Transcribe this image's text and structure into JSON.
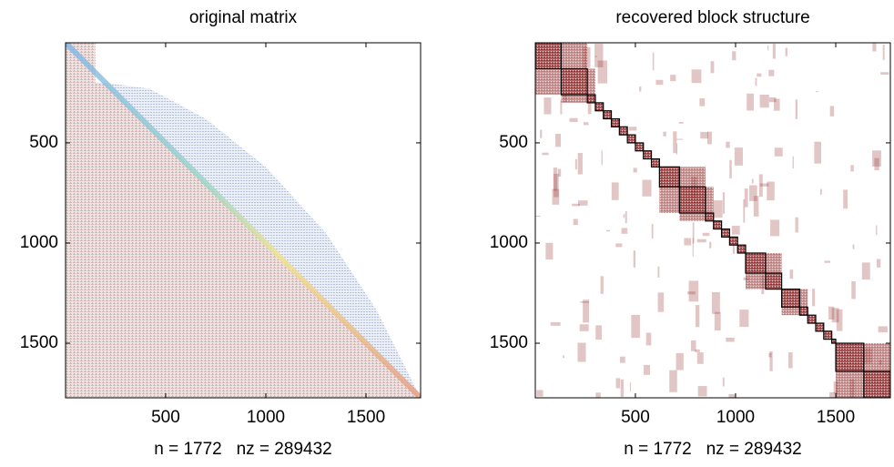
{
  "chart_data": [
    {
      "type": "spy",
      "title": "original matrix",
      "xlabel": "n = 1772   nz = 289432",
      "xlim": [
        0.5,
        1772.5
      ],
      "ylim": [
        0.5,
        1772.5
      ],
      "y_reversed": true,
      "xticks": [
        500,
        1000,
        1500
      ],
      "yticks": [
        500,
        1000,
        1500
      ]
    },
    {
      "type": "blocks",
      "title": "recovered block structure",
      "xlabel": "n = 1772   nz = 289432",
      "xlim": [
        0.5,
        1772.5
      ],
      "ylim": [
        0.5,
        1772.5
      ],
      "y_reversed": true,
      "xticks": [
        500,
        1000,
        1500
      ],
      "yticks": [
        500,
        1000,
        1500
      ],
      "color": "#8b1a1a",
      "block_boundaries": [
        1,
        130,
        260,
        300,
        340,
        380,
        420,
        460,
        500,
        540,
        580,
        620,
        720,
        850,
        890,
        930,
        970,
        1010,
        1050,
        1150,
        1230,
        1320,
        1360,
        1400,
        1440,
        1480,
        1500,
        1640,
        1772
      ]
    }
  ]
}
